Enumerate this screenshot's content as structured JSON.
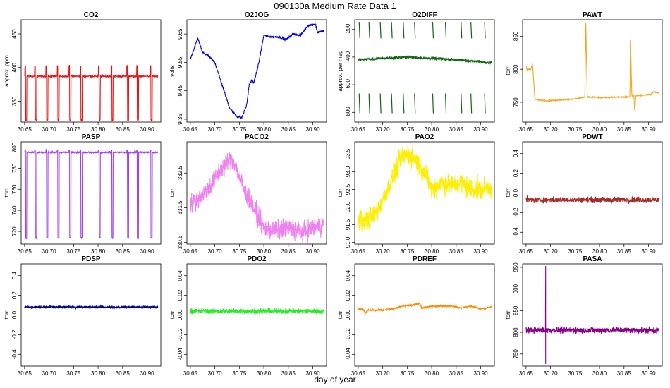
{
  "title": "090130a   Medium Rate Data 1",
  "x_axis_label": "day of year",
  "chart_data": [
    {
      "type": "line",
      "title": "CO2",
      "ylabel": "approx. ppm",
      "color": "#ee1111",
      "xticks": [
        "30.65",
        "30.70",
        "30.75",
        "30.80",
        "30.85",
        "30.90"
      ],
      "xlim": [
        30.643,
        30.928
      ],
      "yticks": [
        "350",
        "400",
        "450"
      ],
      "ylim": [
        319,
        471
      ],
      "baseline": 387,
      "noise": 1.2,
      "pattern": "dips",
      "dip_x": [
        30.652,
        30.672,
        30.695,
        30.718,
        30.742,
        30.765,
        30.802,
        30.828,
        30.86,
        30.88,
        30.908
      ],
      "dip_y": 322,
      "spike_y": 402
    },
    {
      "type": "line",
      "title": "O2JOG",
      "ylabel": "volts",
      "color": "#0000dd",
      "xticks": [
        "30.65",
        "30.70",
        "30.75",
        "30.80",
        "30.85",
        "30.90"
      ],
      "xlim": [
        30.643,
        30.928
      ],
      "yticks": [
        "9.35",
        "9.45",
        "9.55",
        "9.65"
      ],
      "ylim": [
        9.34,
        9.7
      ],
      "noise": 0.004,
      "pattern": "curve",
      "points": [
        [
          30.65,
          9.56
        ],
        [
          30.66,
          9.61
        ],
        [
          30.665,
          9.635
        ],
        [
          30.675,
          9.585
        ],
        [
          30.685,
          9.575
        ],
        [
          30.7,
          9.55
        ],
        [
          30.715,
          9.47
        ],
        [
          30.73,
          9.39
        ],
        [
          30.745,
          9.36
        ],
        [
          30.755,
          9.355
        ],
        [
          30.765,
          9.4
        ],
        [
          30.77,
          9.47
        ],
        [
          30.775,
          9.485
        ],
        [
          30.78,
          9.48
        ],
        [
          30.79,
          9.55
        ],
        [
          30.8,
          9.645
        ],
        [
          30.815,
          9.64
        ],
        [
          30.83,
          9.64
        ],
        [
          30.845,
          9.63
        ],
        [
          30.86,
          9.65
        ],
        [
          30.875,
          9.645
        ],
        [
          30.89,
          9.68
        ],
        [
          30.905,
          9.685
        ],
        [
          30.91,
          9.655
        ],
        [
          30.92,
          9.66
        ]
      ]
    },
    {
      "type": "line",
      "title": "O2DIFF",
      "ylabel": "approx. per meg",
      "color": "#116611",
      "xticks": [
        "30.65",
        "30.70",
        "30.75",
        "30.80",
        "30.85",
        "30.90"
      ],
      "xlim": [
        30.643,
        30.928
      ],
      "yticks": [
        "-800",
        "-600",
        "-400",
        "-200"
      ],
      "ylim": [
        -870,
        -130
      ],
      "baseline": -410,
      "noise": 10,
      "pattern": "segments",
      "drift": [
        [
          30.65,
          -420
        ],
        [
          30.75,
          -400
        ],
        [
          30.85,
          -420
        ],
        [
          30.92,
          -440
        ]
      ],
      "seg_x": [
        30.652,
        30.672,
        30.695,
        30.718,
        30.742,
        30.765,
        30.802,
        30.828,
        30.86,
        30.88,
        30.908
      ],
      "seg_hi": -205,
      "seg_lo": -735
    },
    {
      "type": "line",
      "title": "PAWT",
      "ylabel": "torr",
      "color": "#f5a623",
      "xticks": [
        "30.65",
        "30.70",
        "30.75",
        "30.80",
        "30.85",
        "30.90"
      ],
      "xlim": [
        30.643,
        30.928
      ],
      "yticks": [
        "750",
        "800",
        "850"
      ],
      "ylim": [
        720,
        875
      ],
      "noise": 0.8,
      "pattern": "steps",
      "points": [
        [
          30.65,
          805
        ],
        [
          30.652,
          800
        ],
        [
          30.66,
          800
        ],
        [
          30.662,
          805
        ],
        [
          30.663,
          810
        ],
        [
          30.664,
          800
        ],
        [
          30.668,
          755
        ],
        [
          30.69,
          752
        ],
        [
          30.75,
          755
        ],
        [
          30.77,
          758
        ],
        [
          30.772,
          870
        ],
        [
          30.775,
          758
        ],
        [
          30.8,
          757
        ],
        [
          30.85,
          758
        ],
        [
          30.862,
          758
        ],
        [
          30.863,
          850
        ],
        [
          30.866,
          760
        ],
        [
          30.87,
          760
        ],
        [
          30.872,
          735
        ],
        [
          30.874,
          760
        ],
        [
          30.905,
          762
        ],
        [
          30.91,
          766
        ],
        [
          30.92,
          764
        ]
      ]
    },
    {
      "type": "line",
      "title": "PASP",
      "ylabel": "torr",
      "color": "#a040f0",
      "xticks": [
        "30.65",
        "30.70",
        "30.75",
        "30.80",
        "30.85",
        "30.90"
      ],
      "xlim": [
        30.643,
        30.928
      ],
      "yticks": [
        "720",
        "740",
        "760",
        "780",
        "800"
      ],
      "ylim": [
        708,
        805
      ],
      "baseline": 795,
      "noise": 0.6,
      "pattern": "dips",
      "dip_x": [
        30.652,
        30.672,
        30.695,
        30.718,
        30.742,
        30.765,
        30.802,
        30.828,
        30.86,
        30.88,
        30.908
      ],
      "dip_y": 714,
      "spike_y": 797
    },
    {
      "type": "line",
      "title": "PACO2",
      "ylabel": "torr",
      "color": "#ee82ee",
      "xticks": [
        "30.65",
        "30.70",
        "30.75",
        "30.80",
        "30.85",
        "30.90"
      ],
      "xlim": [
        30.643,
        30.928
      ],
      "yticks": [
        "330.5",
        "331.5",
        "332.5"
      ],
      "ylim": [
        330.45,
        333.4
      ],
      "noise": 0.28,
      "pattern": "curve",
      "points": [
        [
          30.65,
          331.6
        ],
        [
          30.67,
          331.8
        ],
        [
          30.69,
          332.1
        ],
        [
          30.71,
          332.55
        ],
        [
          30.73,
          332.9
        ],
        [
          30.74,
          332.8
        ],
        [
          30.75,
          332.4
        ],
        [
          30.76,
          332.0
        ],
        [
          30.775,
          331.6
        ],
        [
          30.79,
          331.2
        ],
        [
          30.8,
          330.9
        ],
        [
          30.82,
          330.85
        ],
        [
          30.85,
          330.9
        ],
        [
          30.88,
          330.8
        ],
        [
          30.9,
          330.9
        ],
        [
          30.92,
          331.0
        ]
      ]
    },
    {
      "type": "line",
      "title": "PAO2",
      "ylabel": "torr",
      "color": "#ffee00",
      "xticks": [
        "30.65",
        "30.70",
        "30.75",
        "30.80",
        "30.85",
        "30.90"
      ],
      "xlim": [
        30.643,
        30.928
      ],
      "yticks": [
        "91.0",
        "91.5",
        "92.0",
        "92.5",
        "93.0",
        "93.5"
      ],
      "ylim": [
        90.95,
        93.85
      ],
      "noise": 0.3,
      "pattern": "curve",
      "points": [
        [
          30.65,
          91.6
        ],
        [
          30.67,
          91.65
        ],
        [
          30.69,
          91.9
        ],
        [
          30.7,
          92.2
        ],
        [
          30.72,
          92.8
        ],
        [
          30.735,
          93.3
        ],
        [
          30.75,
          93.5
        ],
        [
          30.765,
          93.4
        ],
        [
          30.78,
          93.1
        ],
        [
          30.79,
          92.9
        ],
        [
          30.8,
          92.5
        ],
        [
          30.82,
          92.7
        ],
        [
          30.84,
          92.6
        ],
        [
          30.86,
          92.7
        ],
        [
          30.88,
          92.5
        ],
        [
          30.9,
          92.5
        ],
        [
          30.92,
          92.6
        ]
      ]
    },
    {
      "type": "line",
      "title": "PDWT",
      "ylabel": "torr",
      "color": "#a52a2a",
      "xticks": [
        "30.65",
        "30.70",
        "30.75",
        "30.80",
        "30.85",
        "30.90"
      ],
      "xlim": [
        30.643,
        30.928
      ],
      "yticks": [
        "-0.4",
        "-0.2",
        "0.0",
        "0.2",
        "0.4"
      ],
      "ylim": [
        -0.52,
        0.52
      ],
      "baseline": -0.07,
      "noise": 0.03,
      "pattern": "flat"
    },
    {
      "type": "line",
      "title": "PDSP",
      "ylabel": "torr",
      "color": "#00008b",
      "xticks": [
        "30.65",
        "30.70",
        "30.75",
        "30.80",
        "30.85",
        "30.90"
      ],
      "xlim": [
        30.643,
        30.928
      ],
      "yticks": [
        "-0.4",
        "-0.2",
        "0.0",
        "0.2",
        "0.4"
      ],
      "ylim": [
        -0.52,
        0.52
      ],
      "baseline": 0.08,
      "noise": 0.012,
      "pattern": "flat"
    },
    {
      "type": "line",
      "title": "PDO2",
      "ylabel": "torr",
      "color": "#22ee22",
      "xticks": [
        "30.65",
        "30.70",
        "30.75",
        "30.80",
        "30.85",
        "30.90"
      ],
      "xlim": [
        30.643,
        30.928
      ],
      "yticks": [
        "-0.04",
        "-0.02",
        "0.00",
        "0.02",
        "0.04"
      ],
      "ylim": [
        -0.052,
        0.052
      ],
      "baseline": 0.004,
      "noise": 0.0025,
      "pattern": "flat"
    },
    {
      "type": "line",
      "title": "PDREF",
      "ylabel": "torr",
      "color": "#ff8c00",
      "xticks": [
        "30.65",
        "30.70",
        "30.75",
        "30.80",
        "30.85",
        "30.90"
      ],
      "xlim": [
        30.643,
        30.928
      ],
      "yticks": [
        "-0.04",
        "-0.02",
        "0.00",
        "0.02",
        "0.04"
      ],
      "ylim": [
        -0.052,
        0.052
      ],
      "noise": 0.0008,
      "pattern": "curve",
      "points": [
        [
          30.65,
          0.006
        ],
        [
          30.66,
          0.006
        ],
        [
          30.665,
          0.002
        ],
        [
          30.67,
          0.005
        ],
        [
          30.7,
          0.005
        ],
        [
          30.72,
          0.006
        ],
        [
          30.74,
          0.009
        ],
        [
          30.76,
          0.01
        ],
        [
          30.775,
          0.012
        ],
        [
          30.78,
          0.007
        ],
        [
          30.8,
          0.009
        ],
        [
          30.84,
          0.009
        ],
        [
          30.86,
          0.007
        ],
        [
          30.88,
          0.009
        ],
        [
          30.9,
          0.006
        ],
        [
          30.92,
          0.008
        ]
      ]
    },
    {
      "type": "line",
      "title": "PASA",
      "ylabel": "torr",
      "color": "#8b008b",
      "xticks": [
        "30.65",
        "30.70",
        "30.75",
        "30.80",
        "30.85",
        "30.90"
      ],
      "xlim": [
        30.643,
        30.928
      ],
      "yticks": [
        "750",
        "800",
        "850",
        "900",
        "950"
      ],
      "ylim": [
        722,
        958
      ],
      "baseline": 805,
      "noise": 7,
      "pattern": "flat",
      "spike_at": 30.69,
      "spike_top": 953,
      "spike_bottom": 727
    }
  ]
}
